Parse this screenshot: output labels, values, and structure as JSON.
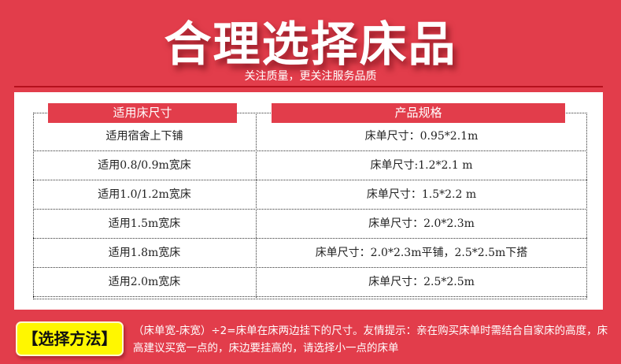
{
  "header": {
    "title": "合理选择床品",
    "subtitle": "关注质量，更关注服务品质"
  },
  "table": {
    "headers": [
      "适用床尺寸",
      "产品规格"
    ],
    "rows": [
      [
        "适用宿舍上下铺",
        "床单尺寸：0.95*2.1m"
      ],
      [
        "适用0.8/0.9m宽床",
        "床单尺寸:1.2*2.1 m"
      ],
      [
        "适用1.0/1.2m宽床",
        "床单尺寸：1.5*2.2 m"
      ],
      [
        "适用1.5m宽床",
        "床单尺寸：2.0*2.3m"
      ],
      [
        "适用1.8m宽床",
        "床单尺寸：2.0*2.3m平铺，2.5*2.5m下搭"
      ],
      [
        "适用2.0m宽床",
        "床单尺寸：2.5*2.5m"
      ]
    ]
  },
  "footer": {
    "label": "【选择方法】",
    "text": "（床单宽-床宽）÷2=床单在床两边挂下的尺寸。友情提示：亲在购买床单时需结合自家床的高度，床高建议买宽一点的，床边要挂高的，请选择小一点的床单"
  },
  "colors": {
    "background": "#e23d4b",
    "label": "#fff700"
  }
}
